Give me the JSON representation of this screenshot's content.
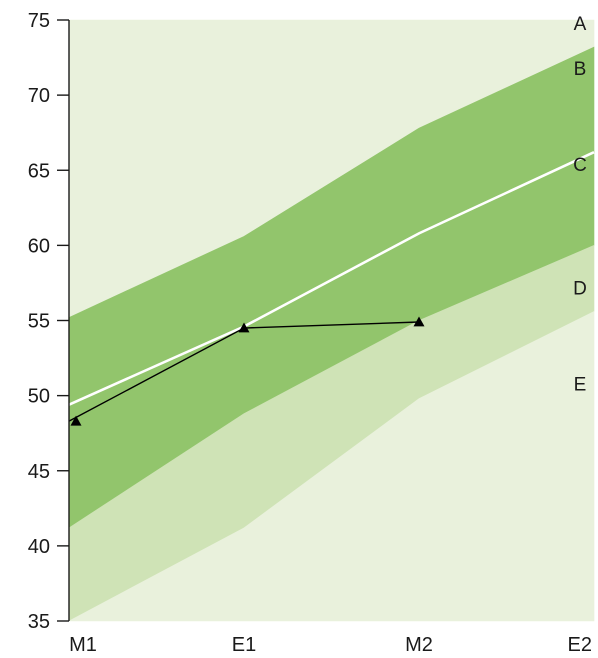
{
  "chart_data": {
    "type": "area",
    "categories": [
      "M1",
      "E1",
      "M2",
      "E2"
    ],
    "ylim": [
      35,
      75
    ],
    "yticks": [
      35,
      40,
      45,
      50,
      55,
      60,
      65,
      70,
      75
    ],
    "ytick_labels": [
      "35",
      "40",
      "45",
      "50",
      "55",
      "60",
      "65",
      "70",
      "75"
    ],
    "grid": false,
    "boundaries": {
      "top": [
        75,
        75,
        75,
        75
      ],
      "a_b": [
        55.2,
        60.6,
        67.8,
        73.2
      ],
      "c_d": [
        41.2,
        48.8,
        55.0,
        60.0
      ],
      "d_e": [
        35.0,
        41.2,
        49.8,
        55.6
      ],
      "bottom": [
        35,
        35,
        35,
        35
      ]
    },
    "bands": [
      {
        "label": "A",
        "color": "#e9f1dc",
        "label_y": 74.8
      },
      {
        "label": "B",
        "color": "#92c56c",
        "label_y": 71.8
      },
      {
        "label": "C",
        "color": "#92c56c",
        "label_y": 65.4
      },
      {
        "label": "D",
        "color": "#cfe3b6",
        "label_y": 57.2
      },
      {
        "label": "E",
        "color": "#e9f1dc",
        "label_y": 50.8
      }
    ],
    "series": [
      {
        "color": "#ffffff",
        "marker": "none",
        "values": [
          49.4,
          54.6,
          60.8,
          66.2
        ]
      },
      {
        "color": "#000000",
        "marker": "triangle",
        "values": [
          48.3,
          54.5,
          54.9,
          null
        ]
      }
    ]
  }
}
